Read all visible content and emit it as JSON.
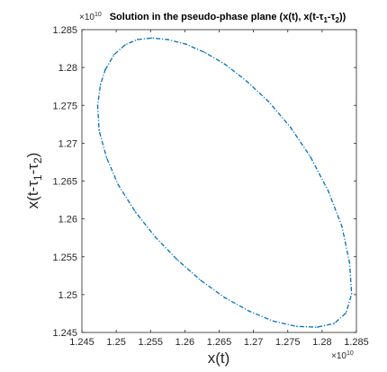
{
  "chart_data": {
    "type": "scatter",
    "title_parts": {
      "main": "Solution in the pseudo-phase plane (x(t), x(t-",
      "sub1": "1",
      "mid": "-",
      "sub2": "2",
      "end": "))",
      "tau": "τ"
    },
    "xlabel": "x(t)",
    "ylabel_parts": {
      "main": "x(t-",
      "sub1": "1",
      "mid": "-",
      "sub2": "2",
      "end": ")",
      "tau": "τ"
    },
    "x_exponent": {
      "base": "×10",
      "power": "10"
    },
    "y_exponent": {
      "base": "×10",
      "power": "10"
    },
    "xlim": [
      1.245,
      1.285
    ],
    "ylim": [
      1.245,
      1.285
    ],
    "x_ticks": [
      "1.245",
      "1.25",
      "1.255",
      "1.26",
      "1.265",
      "1.27",
      "1.275",
      "1.28",
      "1.285"
    ],
    "y_ticks": [
      "1.245",
      "1.25",
      "1.255",
      "1.26",
      "1.265",
      "1.27",
      "1.275",
      "1.28",
      "1.285"
    ],
    "x_tick_values": [
      1.245,
      1.25,
      1.255,
      1.26,
      1.265,
      1.27,
      1.275,
      1.28,
      1.285
    ],
    "y_tick_values": [
      1.245,
      1.25,
      1.255,
      1.26,
      1.265,
      1.27,
      1.275,
      1.28,
      1.285
    ],
    "grid": false,
    "series_color": "#0072BD",
    "series": [
      {
        "x": [
          1.2484,
          1.2497,
          1.2513,
          1.2531,
          1.2552,
          1.2575,
          1.2601,
          1.2629,
          1.2659,
          1.269,
          1.2722,
          1.2754,
          1.2783,
          1.2809,
          1.2829,
          1.284,
          1.2843,
          1.2835,
          1.2818,
          1.2793,
          1.2763,
          1.2729,
          1.2694,
          1.2658,
          1.2623,
          1.2589,
          1.2557,
          1.2528,
          1.2503,
          1.2486,
          1.2475,
          1.2473,
          1.2477,
          1.2484
        ],
        "y": [
          1.2797,
          1.2817,
          1.283,
          1.2837,
          1.2839,
          1.2837,
          1.2831,
          1.282,
          1.2804,
          1.2782,
          1.2755,
          1.2721,
          1.2682,
          1.2637,
          1.259,
          1.2542,
          1.2501,
          1.2476,
          1.2462,
          1.2457,
          1.2458,
          1.2465,
          1.2478,
          1.2496,
          1.2519,
          1.2546,
          1.2576,
          1.2609,
          1.2645,
          1.2681,
          1.2717,
          1.275,
          1.2777,
          1.2797
        ]
      }
    ]
  }
}
